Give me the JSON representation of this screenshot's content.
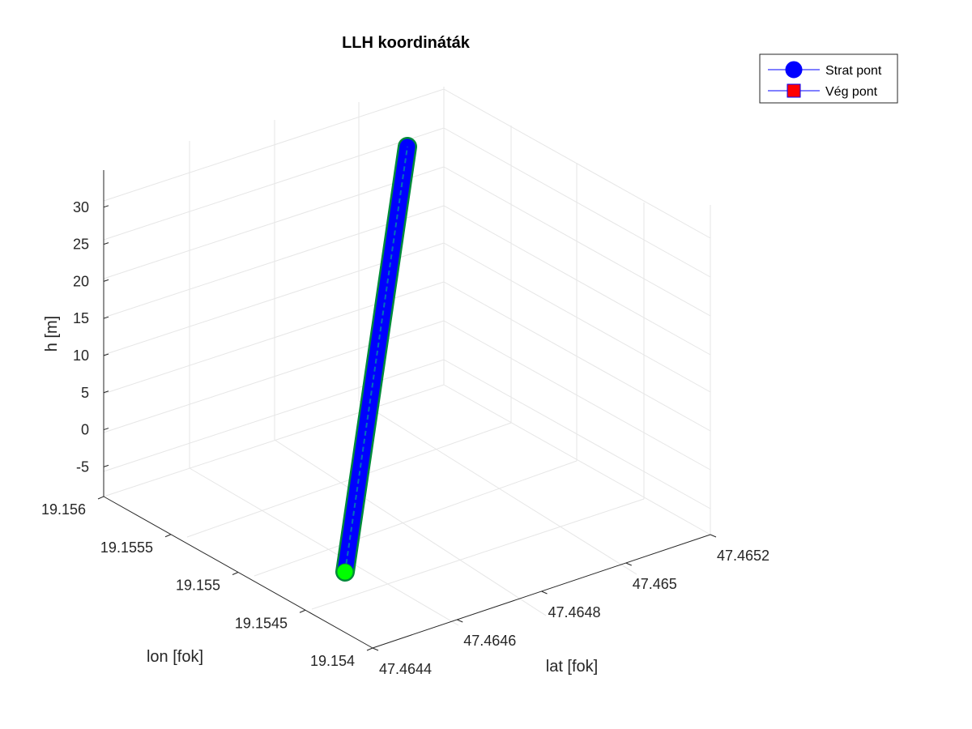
{
  "chart_data": {
    "type": "line3d",
    "title": "LLH koordináták",
    "xlabel": "lat [fok]",
    "ylabel": "lon [fok]",
    "zlabel": "h [m]",
    "lat_ticks": [
      "47.4644",
      "47.4646",
      "47.4648",
      "47.465",
      "47.4652"
    ],
    "lon_ticks": [
      "19.154",
      "19.1545",
      "19.155",
      "19.1555",
      "19.156"
    ],
    "h_ticks": [
      "-5",
      "0",
      "5",
      "10",
      "15",
      "20",
      "25",
      "30"
    ],
    "lat_range": [
      47.4644,
      47.4652
    ],
    "lon_range": [
      19.154,
      19.156
    ],
    "h_range": [
      -9,
      35
    ],
    "grid": true,
    "legend_position": "top-right",
    "series": [
      {
        "name": "Strat pont",
        "marker": "circle",
        "color": "#0000ff"
      },
      {
        "name": "Vég pont",
        "marker": "square",
        "color": "#ff0000"
      }
    ],
    "track": {
      "color": "#0000ff",
      "edge_color": "#00a000"
    },
    "end_marker": {
      "color": "#00ff00"
    }
  }
}
